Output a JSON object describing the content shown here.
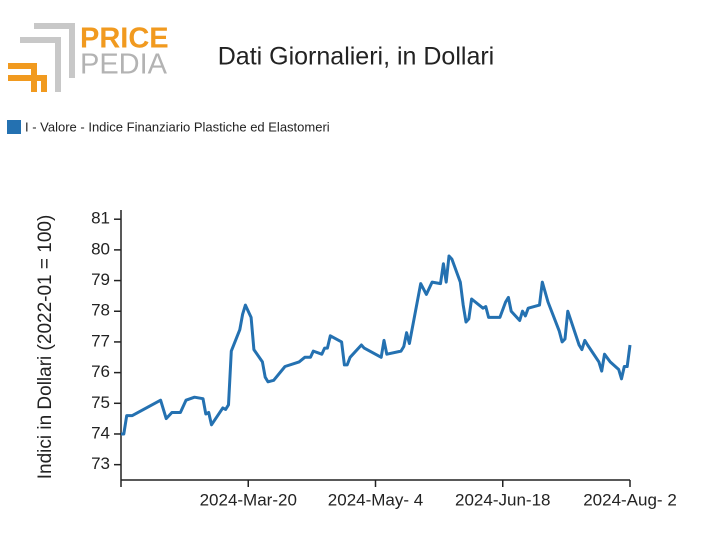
{
  "logo": {
    "top": "PRICE",
    "bottom": "PEDIA"
  },
  "chart_data": {
    "type": "line",
    "title": "Dati Giornalieri, in Dollari",
    "y_label": "Indici in Dollari (2022-01 = 100)",
    "legend_position": "top-left",
    "x": [
      "2024-02-04",
      "2024-02-05",
      "2024-02-06",
      "2024-02-08",
      "2024-02-18",
      "2024-02-20",
      "2024-02-22",
      "2024-02-25",
      "2024-02-27",
      "2024-03-01",
      "2024-03-04",
      "2024-03-05",
      "2024-03-06",
      "2024-03-07",
      "2024-03-11",
      "2024-03-12",
      "2024-03-13",
      "2024-03-14",
      "2024-03-17",
      "2024-03-18",
      "2024-03-19",
      "2024-03-21",
      "2024-03-22",
      "2024-03-25",
      "2024-03-26",
      "2024-03-27",
      "2024-03-29",
      "2024-04-02",
      "2024-04-07",
      "2024-04-09",
      "2024-04-11",
      "2024-04-12",
      "2024-04-15",
      "2024-04-16",
      "2024-04-17",
      "2024-04-18",
      "2024-04-22",
      "2024-04-23",
      "2024-04-24",
      "2024-04-25",
      "2024-04-29",
      "2024-04-30",
      "2024-05-06",
      "2024-05-07",
      "2024-05-08",
      "2024-05-13",
      "2024-05-14",
      "2024-05-15",
      "2024-05-16",
      "2024-05-20",
      "2024-05-22",
      "2024-05-24",
      "2024-05-27",
      "2024-05-28",
      "2024-05-29",
      "2024-05-30",
      "2024-05-31",
      "2024-06-03",
      "2024-06-04",
      "2024-06-05",
      "2024-06-06",
      "2024-06-07",
      "2024-06-11",
      "2024-06-12",
      "2024-06-13",
      "2024-06-17",
      "2024-06-19",
      "2024-06-20",
      "2024-06-21",
      "2024-06-24",
      "2024-06-25",
      "2024-06-26",
      "2024-06-27",
      "2024-07-01",
      "2024-07-02",
      "2024-07-04",
      "2024-07-08",
      "2024-07-09",
      "2024-07-10",
      "2024-07-11",
      "2024-07-15",
      "2024-07-16",
      "2024-07-17",
      "2024-07-18",
      "2024-07-22",
      "2024-07-23",
      "2024-07-24",
      "2024-07-26",
      "2024-07-29",
      "2024-07-30",
      "2024-07-31",
      "2024-08-01",
      "2024-08-02"
    ],
    "series": [
      {
        "name": "I - Valore - Indice Finanziario Plastiche ed Elastomeri",
        "color": "#2471b1",
        "values": [
          74.0,
          74.0,
          74.6,
          74.6,
          75.1,
          74.5,
          74.7,
          74.7,
          75.1,
          75.2,
          75.15,
          74.65,
          74.7,
          74.3,
          74.85,
          74.8,
          74.95,
          76.7,
          77.4,
          77.9,
          78.2,
          77.8,
          76.75,
          76.35,
          75.85,
          75.7,
          75.75,
          76.2,
          76.35,
          76.5,
          76.5,
          76.7,
          76.6,
          76.8,
          76.8,
          77.2,
          77.0,
          76.25,
          76.25,
          76.5,
          76.9,
          76.8,
          76.5,
          77.05,
          76.6,
          76.7,
          76.85,
          77.3,
          76.95,
          78.9,
          78.55,
          78.95,
          78.9,
          79.55,
          78.95,
          79.8,
          79.7,
          78.95,
          78.2,
          77.65,
          77.75,
          78.4,
          78.1,
          78.15,
          77.8,
          77.8,
          78.3,
          78.45,
          78.0,
          77.7,
          78.0,
          77.85,
          78.1,
          78.2,
          78.95,
          78.3,
          77.35,
          77.0,
          77.1,
          78.0,
          76.9,
          76.75,
          77.05,
          76.9,
          76.35,
          76.05,
          76.6,
          76.35,
          76.1,
          75.8,
          76.2,
          76.2,
          76.9
        ]
      }
    ],
    "xlim": [
      "2024-02-04",
      "2024-08-02"
    ],
    "xticks": [
      {
        "value": "2024-02-04",
        "label": ""
      },
      {
        "value": "2024-03-20",
        "label": "2024-Mar-20"
      },
      {
        "value": "2024-05-04",
        "label": "2024-May- 4"
      },
      {
        "value": "2024-06-18",
        "label": "2024-Jun-18"
      },
      {
        "value": "2024-08-02",
        "label": "2024-Aug- 2"
      }
    ],
    "ylim": [
      72.5,
      81.3
    ],
    "yticks": [
      73,
      74,
      75,
      76,
      77,
      78,
      79,
      80,
      81
    ]
  }
}
